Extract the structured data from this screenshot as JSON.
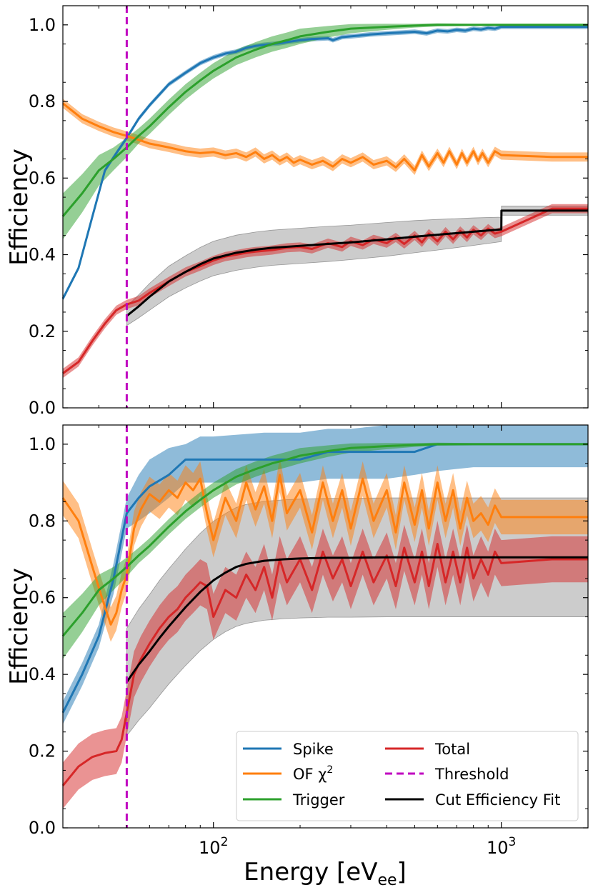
{
  "chart_data": [
    {
      "type": "line",
      "panel": "top",
      "xlabel": "",
      "ylabel": "Efficiency",
      "xscale": "log",
      "xlim": [
        30,
        2000
      ],
      "ylim": [
        0.0,
        1.05
      ],
      "yticks": [
        "0.0",
        "0.2",
        "0.4",
        "0.6",
        "0.8",
        "1.0"
      ],
      "threshold": 50,
      "series": [
        {
          "key": "spike",
          "color": "#1f77b4",
          "x": [
            30,
            34,
            38,
            42,
            46,
            50,
            55,
            60,
            70,
            80,
            90,
            100,
            110,
            120,
            130,
            140,
            150,
            160,
            170,
            180,
            200,
            220,
            250,
            260,
            280,
            300,
            320,
            350,
            400,
            450,
            500,
            550,
            600,
            650,
            700,
            750,
            800,
            850,
            900,
            950,
            1000,
            1500,
            2000
          ],
          "y": [
            0.285,
            0.365,
            0.5,
            0.62,
            0.665,
            0.705,
            0.755,
            0.79,
            0.845,
            0.875,
            0.9,
            0.915,
            0.925,
            0.93,
            0.94,
            0.945,
            0.948,
            0.95,
            0.952,
            0.955,
            0.96,
            0.963,
            0.965,
            0.96,
            0.968,
            0.97,
            0.972,
            0.975,
            0.978,
            0.98,
            0.982,
            0.978,
            0.985,
            0.983,
            0.987,
            0.985,
            0.99,
            0.988,
            0.992,
            0.99,
            0.995,
            0.995,
            0.995
          ],
          "band": 0.006
        },
        {
          "key": "of",
          "color": "#ff7f0e",
          "x": [
            30,
            35,
            40,
            45,
            50,
            55,
            60,
            70,
            80,
            90,
            100,
            110,
            120,
            130,
            140,
            150,
            160,
            170,
            180,
            190,
            200,
            220,
            240,
            260,
            280,
            300,
            330,
            360,
            400,
            430,
            460,
            500,
            530,
            560,
            600,
            630,
            660,
            700,
            730,
            760,
            800,
            830,
            860,
            900,
            950,
            1000,
            1500,
            2000
          ],
          "y": [
            0.795,
            0.755,
            0.735,
            0.72,
            0.71,
            0.7,
            0.69,
            0.68,
            0.67,
            0.665,
            0.668,
            0.66,
            0.665,
            0.655,
            0.668,
            0.65,
            0.66,
            0.645,
            0.655,
            0.64,
            0.648,
            0.635,
            0.645,
            0.63,
            0.65,
            0.64,
            0.655,
            0.635,
            0.645,
            0.628,
            0.65,
            0.62,
            0.66,
            0.63,
            0.665,
            0.64,
            0.67,
            0.635,
            0.665,
            0.64,
            0.67,
            0.645,
            0.665,
            0.64,
            0.67,
            0.66,
            0.655,
            0.655
          ],
          "band": 0.012
        },
        {
          "key": "trigger",
          "color": "#2ca02c",
          "x": [
            30,
            35,
            40,
            45,
            50,
            55,
            60,
            70,
            80,
            90,
            100,
            120,
            140,
            160,
            180,
            200,
            250,
            300,
            400,
            500,
            600,
            800,
            1000,
            1500,
            2000
          ],
          "y": [
            0.5,
            0.56,
            0.62,
            0.65,
            0.68,
            0.71,
            0.735,
            0.785,
            0.825,
            0.855,
            0.88,
            0.915,
            0.935,
            0.95,
            0.96,
            0.97,
            0.982,
            0.99,
            0.995,
            0.998,
            1.0,
            1.0,
            1.0,
            1.0,
            1.0
          ],
          "band_width": [
            0.06,
            0.05,
            0.04,
            0.03,
            0.025,
            0.02,
            0.02,
            0.02,
            0.02,
            0.02,
            0.02,
            0.02,
            0.02,
            0.02,
            0.02,
            0.02,
            0.015,
            0.012,
            0.008,
            0.005,
            0.004,
            0.003,
            0.003,
            0.003,
            0.003
          ]
        },
        {
          "key": "total",
          "color": "#d62728",
          "x": [
            30,
            34,
            38,
            42,
            46,
            50,
            55,
            60,
            70,
            80,
            90,
            100,
            110,
            120,
            130,
            140,
            150,
            160,
            180,
            200,
            220,
            250,
            280,
            300,
            330,
            360,
            400,
            430,
            460,
            500,
            530,
            560,
            600,
            640,
            680,
            720,
            760,
            800,
            850,
            900,
            950,
            1000,
            1500,
            2000
          ],
          "y": [
            0.09,
            0.12,
            0.175,
            0.22,
            0.255,
            0.27,
            0.28,
            0.3,
            0.33,
            0.355,
            0.37,
            0.385,
            0.395,
            0.4,
            0.405,
            0.408,
            0.41,
            0.412,
            0.418,
            0.42,
            0.415,
            0.43,
            0.42,
            0.435,
            0.425,
            0.44,
            0.43,
            0.445,
            0.428,
            0.45,
            0.432,
            0.455,
            0.435,
            0.46,
            0.44,
            0.462,
            0.445,
            0.465,
            0.45,
            0.468,
            0.455,
            0.46,
            0.52,
            0.52
          ],
          "band": 0.012
        },
        {
          "key": "fit",
          "color": "#000000",
          "x": [
            50,
            55,
            60,
            70,
            80,
            90,
            100,
            120,
            140,
            160,
            200,
            250,
            300,
            400,
            500,
            600,
            800,
            1000,
            1001,
            1500,
            2000
          ],
          "y": [
            0.24,
            0.265,
            0.29,
            0.33,
            0.355,
            0.375,
            0.39,
            0.405,
            0.413,
            0.418,
            0.423,
            0.428,
            0.432,
            0.44,
            0.447,
            0.452,
            0.46,
            0.466,
            0.515,
            0.515,
            0.515
          ],
          "band_width": [
            0.025,
            0.03,
            0.035,
            0.04,
            0.042,
            0.044,
            0.045,
            0.046,
            0.046,
            0.046,
            0.046,
            0.046,
            0.045,
            0.044,
            0.042,
            0.04,
            0.036,
            0.032,
            0.012,
            0.012,
            0.012
          ]
        }
      ]
    },
    {
      "type": "line",
      "panel": "bottom",
      "xlabel": "Energy [eV_ee]",
      "ylabel": "Efficiency",
      "xscale": "log",
      "xlim": [
        30,
        2000
      ],
      "ylim": [
        0.0,
        1.05
      ],
      "yticks": [
        "0.0",
        "0.2",
        "0.4",
        "0.6",
        "0.8",
        "1.0"
      ],
      "xticks": [
        {
          "value": 100,
          "base": "10",
          "exp": "2"
        },
        {
          "value": 1000,
          "base": "10",
          "exp": "3"
        }
      ],
      "threshold": 50,
      "series": [
        {
          "key": "spike",
          "color": "#1f77b4",
          "x": [
            30,
            35,
            40,
            45,
            50,
            55,
            60,
            70,
            80,
            90,
            100,
            150,
            200,
            250,
            300,
            400,
            500,
            600,
            800,
            1000,
            1500,
            2000
          ],
          "y": [
            0.3,
            0.4,
            0.5,
            0.65,
            0.82,
            0.86,
            0.89,
            0.92,
            0.96,
            0.96,
            0.96,
            0.96,
            0.96,
            0.98,
            0.98,
            0.98,
            0.98,
            1.0,
            1.0,
            1.0,
            1.0,
            1.0
          ],
          "lower": [
            0.27,
            0.37,
            0.47,
            0.61,
            0.78,
            0.8,
            0.82,
            0.86,
            0.9,
            0.9,
            0.9,
            0.9,
            0.9,
            0.91,
            0.91,
            0.91,
            0.92,
            0.93,
            0.94,
            0.94,
            0.94,
            0.94
          ],
          "upper": [
            0.33,
            0.43,
            0.53,
            0.69,
            0.86,
            0.92,
            0.96,
            0.99,
            1.0,
            1.02,
            1.02,
            1.03,
            1.03,
            1.04,
            1.04,
            1.05,
            1.05,
            1.05,
            1.05,
            1.05,
            1.05,
            1.05
          ]
        },
        {
          "key": "of",
          "color": "#ff7f0e",
          "x": [
            30,
            34,
            38,
            41,
            44,
            46,
            48,
            50,
            53,
            56,
            60,
            65,
            70,
            75,
            80,
            85,
            90,
            95,
            100,
            110,
            120,
            130,
            140,
            150,
            160,
            170,
            180,
            200,
            220,
            240,
            260,
            280,
            300,
            330,
            360,
            400,
            430,
            460,
            500,
            530,
            560,
            600,
            640,
            680,
            720,
            760,
            800,
            850,
            900,
            950,
            1000,
            1500,
            2000
          ],
          "y": [
            0.86,
            0.8,
            0.68,
            0.6,
            0.53,
            0.56,
            0.62,
            0.66,
            0.78,
            0.83,
            0.87,
            0.85,
            0.88,
            0.86,
            0.9,
            0.88,
            0.91,
            0.82,
            0.75,
            0.86,
            0.8,
            0.9,
            0.83,
            0.89,
            0.8,
            0.92,
            0.82,
            0.88,
            0.77,
            0.9,
            0.8,
            0.88,
            0.78,
            0.91,
            0.8,
            0.88,
            0.77,
            0.9,
            0.79,
            0.88,
            0.78,
            0.9,
            0.8,
            0.88,
            0.78,
            0.86,
            0.8,
            0.82,
            0.79,
            0.84,
            0.81,
            0.81,
            0.81
          ],
          "band": 0.045
        },
        {
          "key": "trigger",
          "color": "#2ca02c",
          "x": [
            30,
            35,
            40,
            45,
            50,
            55,
            60,
            70,
            80,
            90,
            100,
            120,
            140,
            160,
            180,
            200,
            250,
            300,
            400,
            500,
            600,
            800,
            1000,
            1500,
            2000
          ],
          "y": [
            0.5,
            0.56,
            0.62,
            0.65,
            0.68,
            0.71,
            0.735,
            0.785,
            0.825,
            0.855,
            0.88,
            0.915,
            0.935,
            0.95,
            0.96,
            0.97,
            0.982,
            0.99,
            0.995,
            0.998,
            1.0,
            1.0,
            1.0,
            1.0,
            1.0
          ],
          "band_width": [
            0.06,
            0.05,
            0.04,
            0.03,
            0.025,
            0.02,
            0.02,
            0.02,
            0.02,
            0.02,
            0.02,
            0.02,
            0.02,
            0.02,
            0.02,
            0.02,
            0.015,
            0.012,
            0.008,
            0.005,
            0.004,
            0.003,
            0.003,
            0.003,
            0.003
          ]
        },
        {
          "key": "total",
          "color": "#d62728",
          "x": [
            30,
            34,
            38,
            42,
            46,
            48,
            50,
            53,
            56,
            60,
            65,
            70,
            75,
            80,
            85,
            90,
            95,
            100,
            110,
            120,
            130,
            140,
            150,
            160,
            170,
            180,
            200,
            220,
            240,
            260,
            280,
            300,
            330,
            360,
            400,
            430,
            460,
            500,
            530,
            560,
            600,
            640,
            680,
            720,
            760,
            800,
            850,
            900,
            950,
            1000,
            1500,
            2000
          ],
          "y": [
            0.11,
            0.16,
            0.185,
            0.195,
            0.2,
            0.23,
            0.3,
            0.4,
            0.44,
            0.48,
            0.52,
            0.55,
            0.57,
            0.6,
            0.62,
            0.64,
            0.63,
            0.55,
            0.62,
            0.6,
            0.66,
            0.62,
            0.68,
            0.6,
            0.7,
            0.64,
            0.7,
            0.62,
            0.72,
            0.65,
            0.7,
            0.63,
            0.72,
            0.64,
            0.71,
            0.63,
            0.73,
            0.64,
            0.72,
            0.63,
            0.74,
            0.64,
            0.72,
            0.64,
            0.73,
            0.65,
            0.7,
            0.66,
            0.72,
            0.69,
            0.7,
            0.7
          ],
          "band": 0.06
        },
        {
          "key": "fit",
          "color": "#000000",
          "x": [
            50,
            55,
            60,
            65,
            70,
            80,
            90,
            100,
            110,
            120,
            130,
            150,
            175,
            200,
            250,
            300,
            400,
            500,
            700,
            1000,
            1500,
            2000
          ],
          "y": [
            0.38,
            0.425,
            0.46,
            0.495,
            0.525,
            0.575,
            0.615,
            0.645,
            0.665,
            0.68,
            0.688,
            0.696,
            0.7,
            0.702,
            0.704,
            0.704,
            0.705,
            0.705,
            0.705,
            0.705,
            0.705,
            0.705
          ],
          "band_width": [
            0.14,
            0.145,
            0.148,
            0.15,
            0.15,
            0.152,
            0.153,
            0.154,
            0.154,
            0.155,
            0.155,
            0.155,
            0.155,
            0.155,
            0.155,
            0.155,
            0.155,
            0.155,
            0.155,
            0.155,
            0.155,
            0.155
          ]
        }
      ],
      "legend": {
        "placement": "lower-right",
        "entries": [
          {
            "key": "spike",
            "label": "Spike",
            "color": "#1f77b4",
            "style": "solid"
          },
          {
            "key": "of",
            "label": "OF χ",
            "sup": "2",
            "color": "#ff7f0e",
            "style": "solid"
          },
          {
            "key": "trigger",
            "label": "Trigger",
            "color": "#2ca02c",
            "style": "solid"
          },
          {
            "key": "total",
            "label": "Total",
            "color": "#d62728",
            "style": "solid"
          },
          {
            "key": "threshold",
            "label": "Threshold",
            "color": "#c000c0",
            "style": "dashed"
          },
          {
            "key": "fit",
            "label": "Cut Efficiency Fit",
            "color": "#000000",
            "style": "solid"
          }
        ]
      }
    }
  ],
  "labels": {
    "xlabel_main": "Energy [eV",
    "xlabel_sub": "ee",
    "xlabel_close": "]",
    "ylabel_top": "Efficiency",
    "ylabel_bottom": "Efficiency"
  }
}
